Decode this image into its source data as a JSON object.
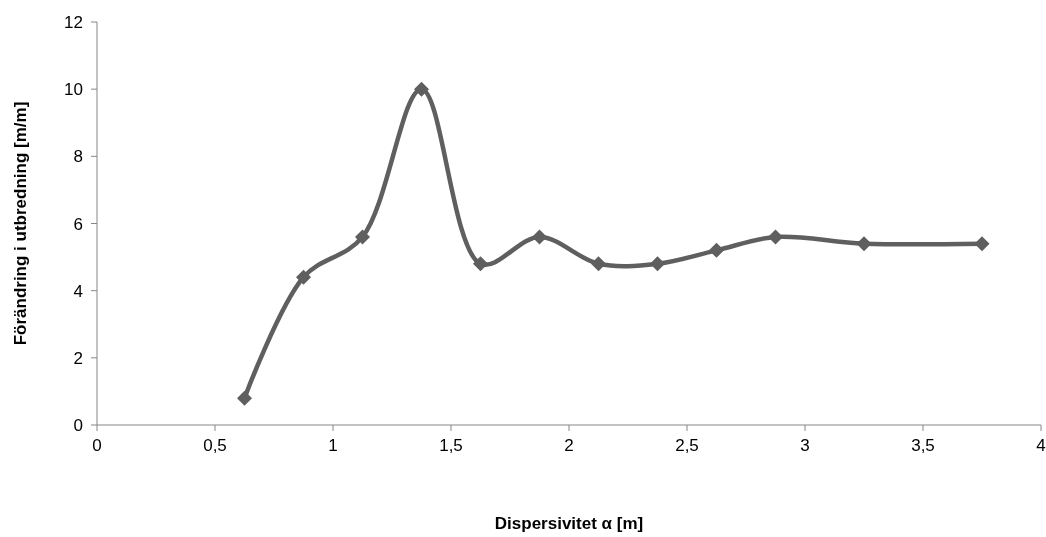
{
  "chart_data": {
    "type": "line",
    "xlabel": "Dispersivitet α [m]",
    "ylabel": "Förändring i utbredning [m/m]",
    "x": [
      0.625,
      0.875,
      1.125,
      1.375,
      1.625,
      1.875,
      2.125,
      2.375,
      2.625,
      2.875,
      3.25,
      3.75
    ],
    "series": [
      {
        "color": "#5f5f5f",
        "values": [
          0.8,
          4.4,
          5.6,
          10,
          4.8,
          5.6,
          4.8,
          4.8,
          5.2,
          5.6,
          5.4,
          5.4
        ]
      }
    ],
    "xlim": [
      0,
      4
    ],
    "xticks": [
      0,
      {
        "value": 0.5,
        "label": "0,5"
      },
      1,
      {
        "value": 1.5,
        "label": "1,5"
      },
      2,
      {
        "value": 2.5,
        "label": "2,5"
      },
      3,
      {
        "value": 3.5,
        "label": "3,5"
      },
      4
    ],
    "ylim": [
      0,
      12
    ],
    "yticks": [
      0,
      2,
      4,
      6,
      8,
      10,
      12
    ],
    "grid": false,
    "marker": "diamond",
    "line_style": "solid"
  }
}
